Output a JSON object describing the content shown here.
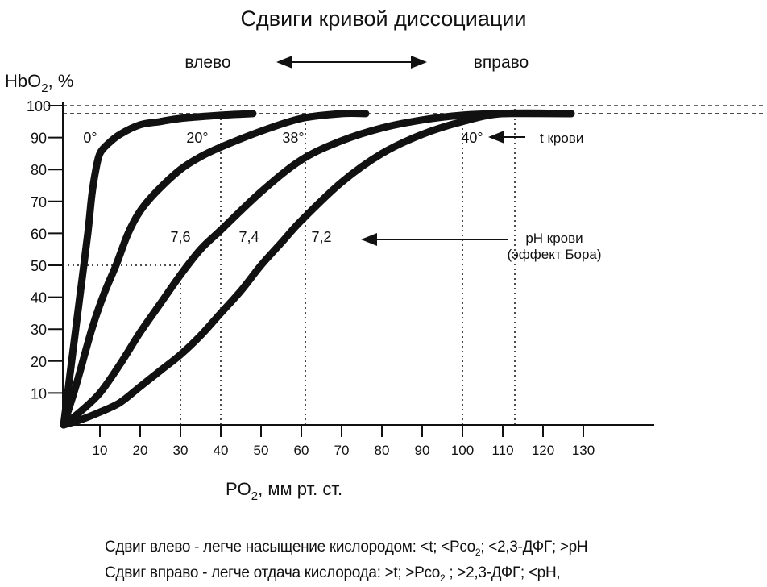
{
  "chart_data": {
    "type": "line",
    "title": "Сдвиги кривой диссоциации",
    "ylabel": "HbO",
    "ylabel_sub": "2",
    "ylabel_tail": ", %",
    "xlabel": "PO",
    "xlabel_sub": "2",
    "xlabel_tail": ", мм рт. ст.",
    "xlim": [
      0,
      140
    ],
    "ylim": [
      0,
      100
    ],
    "xticks": [
      10,
      20,
      30,
      40,
      50,
      60,
      70,
      80,
      90,
      100,
      110,
      120,
      130
    ],
    "yticks": [
      10,
      20,
      30,
      40,
      50,
      60,
      70,
      80,
      90,
      100
    ],
    "shift_left_label": "влево",
    "shift_right_label": "вправо",
    "temp_arrow_label": "t крови",
    "ph_arrow_label_1": "pH крови",
    "ph_arrow_label_2": "(эффект Бора)",
    "series": [
      {
        "name": "0°",
        "x": [
          1,
          3,
          5,
          7,
          8,
          9,
          10,
          12,
          15,
          20,
          25,
          30,
          40,
          48
        ],
        "y": [
          0,
          20,
          40,
          60,
          72,
          80,
          85,
          88,
          91,
          94,
          95,
          96,
          97,
          97.5
        ]
      },
      {
        "name": "20°",
        "x": [
          1,
          4,
          8,
          11,
          14,
          17,
          20,
          24,
          30,
          35,
          40,
          50,
          60,
          70,
          76
        ],
        "y": [
          0,
          12,
          30,
          41,
          50,
          60,
          67,
          73,
          80,
          84,
          87,
          92,
          96,
          97.5,
          97.5
        ]
      },
      {
        "name": "38° / 7,4",
        "x": [
          1,
          5,
          10,
          15,
          20,
          25,
          30,
          35,
          40,
          50,
          60,
          70,
          80,
          90,
          100,
          110,
          127
        ],
        "y": [
          0,
          4,
          10,
          19,
          29,
          38,
          47,
          55,
          61,
          73,
          83,
          89,
          93,
          95.5,
          97,
          97.5,
          97.5
        ]
      },
      {
        "name": "40° / 7,2",
        "x": [
          1,
          5,
          10,
          15,
          20,
          25,
          30,
          35,
          40,
          45,
          50,
          55,
          60,
          70,
          80,
          90,
          100,
          110,
          127
        ],
        "y": [
          0,
          1.5,
          4,
          7,
          12,
          17,
          22,
          28,
          35,
          42,
          50,
          57,
          64,
          76,
          85,
          91,
          95,
          97.5,
          97.5
        ]
      }
    ],
    "temp_labels": [
      "0°",
      "20°",
      "38°",
      "40°"
    ],
    "ph_labels": [
      "7,6",
      "7,4",
      "7,2"
    ],
    "reference_lines": {
      "hline_dashed": [
        100,
        97.5
      ],
      "hline_dotted_to_x30": 50,
      "vlines_dotted": [
        30,
        40,
        61,
        100,
        113
      ]
    }
  },
  "footer": {
    "line1": "Сдвиг влево - легче насыщение кислородом: <t; <Pco",
    "line1_sub": "2",
    "line1_tail": "; <2,3-ДФГ; >pH",
    "line2": "Сдвиг вправо - легче отдача кислорода: >t; >Pco",
    "line2_sub": "2",
    "line2_tail": " ; >2,3-ДФГ; <pH,"
  }
}
